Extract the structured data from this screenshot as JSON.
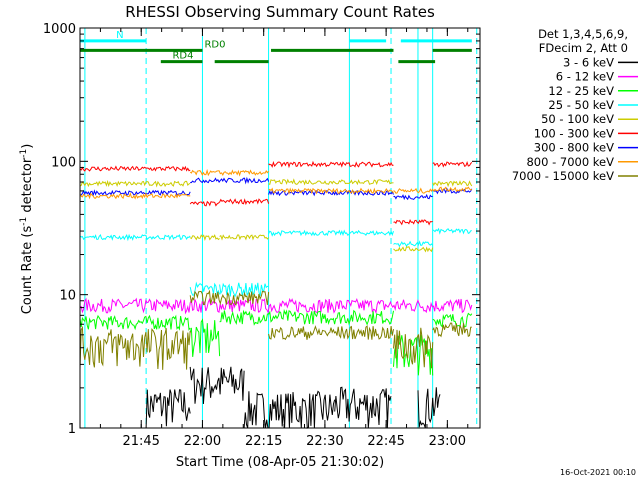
{
  "chart_data": {
    "type": "line",
    "title": "RHESSI Observing Summary Count Rates",
    "xlabel": "Start Time (08-Apr-05 21:30:02)",
    "ylabel_main": "Count Rate (s",
    "ylabel_sup1": "-1",
    "ylabel_mid": " detector",
    "ylabel_sup2": "-1",
    "ylabel_end": ")",
    "yscale": "log",
    "ylim": [
      1,
      1000
    ],
    "xlim_minutes": [
      21.5,
      23.1333
    ],
    "x_unit": "hours (UT)",
    "y_ticks": [
      {
        "value": 1,
        "label": "1"
      },
      {
        "value": 10,
        "label": "10"
      },
      {
        "value": 100,
        "label": "100"
      },
      {
        "value": 1000,
        "label": "1000"
      }
    ],
    "x_ticks": [
      {
        "value": 21.75,
        "label": "21:45"
      },
      {
        "value": 22.0,
        "label": "22:00"
      },
      {
        "value": 22.25,
        "label": "22:15"
      },
      {
        "value": 22.5,
        "label": "22:30"
      },
      {
        "value": 22.75,
        "label": "22:45"
      },
      {
        "value": 23.0,
        "label": "23:00"
      }
    ],
    "legend": {
      "header1": "Det 1,3,4,5,6,9,",
      "header2": "FDecim 2, Att 0",
      "placement": "right"
    },
    "series": [
      {
        "name": "3 - 6 keV",
        "color": "#000000",
        "segments": [
          [
            21.77,
            21.95,
            1.5
          ],
          [
            21.95,
            22.17,
            2.2
          ],
          [
            22.17,
            22.54,
            1.4
          ],
          [
            22.54,
            22.77,
            1.5
          ],
          [
            22.88,
            22.97,
            1.5
          ]
        ]
      },
      {
        "name": "6 - 12 keV",
        "color": "#ff00ff",
        "segments": [
          [
            21.5,
            23.1,
            8.3
          ]
        ]
      },
      {
        "name": "12 - 25 keV",
        "color": "#00ff00",
        "segments": [
          [
            21.5,
            21.95,
            6.2
          ],
          [
            21.95,
            22.07,
            4.8
          ],
          [
            22.07,
            22.27,
            6.8
          ],
          [
            22.27,
            22.78,
            6.8
          ],
          [
            22.78,
            22.94,
            3.8
          ],
          [
            22.94,
            23.1,
            6.5
          ]
        ]
      },
      {
        "name": "25 - 50 keV",
        "color": "#00ffff",
        "segments": [
          [
            21.5,
            21.95,
            27
          ],
          [
            21.95,
            22.07,
            11
          ],
          [
            22.07,
            22.27,
            11
          ],
          [
            22.27,
            22.78,
            29
          ],
          [
            22.78,
            22.94,
            24
          ],
          [
            22.94,
            23.1,
            30
          ]
        ]
      },
      {
        "name": "50 - 100 keV",
        "color": "#cccc00",
        "segments": [
          [
            21.5,
            21.95,
            68
          ],
          [
            21.95,
            22.07,
            27
          ],
          [
            22.07,
            22.27,
            27
          ],
          [
            22.27,
            22.78,
            70
          ],
          [
            22.78,
            22.94,
            22
          ],
          [
            22.94,
            23.1,
            68
          ]
        ]
      },
      {
        "name": "100 - 300 keV",
        "color": "#ff0000",
        "segments": [
          [
            21.5,
            21.95,
            88
          ],
          [
            21.95,
            22.07,
            48
          ],
          [
            22.07,
            22.27,
            50
          ],
          [
            22.27,
            22.78,
            95
          ],
          [
            22.78,
            22.94,
            35
          ],
          [
            22.94,
            23.1,
            95
          ]
        ]
      },
      {
        "name": "300 - 800 keV",
        "color": "#0000ff",
        "segments": [
          [
            21.5,
            21.95,
            58
          ],
          [
            21.95,
            22.27,
            72
          ],
          [
            22.27,
            22.78,
            58
          ],
          [
            22.78,
            22.94,
            54
          ],
          [
            22.94,
            23.1,
            60
          ]
        ]
      },
      {
        "name": "800 - 7000 keV",
        "color": "#ff9900",
        "segments": [
          [
            21.5,
            21.95,
            55
          ],
          [
            21.95,
            22.27,
            82
          ],
          [
            22.27,
            22.78,
            60
          ],
          [
            22.78,
            22.94,
            60
          ],
          [
            22.94,
            23.1,
            62
          ]
        ]
      },
      {
        "name": "7000 - 15000 keV",
        "color": "#808000",
        "segments": [
          [
            21.5,
            21.95,
            4.2
          ],
          [
            21.95,
            22.27,
            9.5
          ],
          [
            22.27,
            22.78,
            5.2
          ],
          [
            22.78,
            22.94,
            4.2
          ],
          [
            22.94,
            23.1,
            5.5
          ]
        ]
      }
    ],
    "flags": [
      {
        "name": "N",
        "color": "#00ffff",
        "value": 800,
        "segments": [
          [
            21.5,
            21.77
          ],
          [
            22.6,
            22.75
          ],
          [
            22.81,
            23.1
          ]
        ]
      },
      {
        "name": "RD0",
        "color": "#008000",
        "value": 680,
        "segments": [
          [
            21.5,
            22.0
          ],
          [
            22.28,
            22.78
          ],
          [
            22.94,
            23.1
          ]
        ]
      },
      {
        "name": "RD4",
        "color": "#008000",
        "value": 560,
        "segments": [
          [
            21.83,
            22.0
          ],
          [
            22.05,
            22.27
          ],
          [
            22.8,
            22.95
          ]
        ]
      }
    ],
    "vlines": [
      {
        "x": 21.52,
        "style": "solid"
      },
      {
        "x": 21.77,
        "style": "dashed"
      },
      {
        "x": 22.0,
        "style": "solid"
      },
      {
        "x": 22.27,
        "style": "solid"
      },
      {
        "x": 22.6,
        "style": "solid"
      },
      {
        "x": 22.77,
        "style": "dashed"
      },
      {
        "x": 22.88,
        "style": "solid"
      },
      {
        "x": 22.94,
        "style": "solid"
      },
      {
        "x": 23.12,
        "style": "dashed"
      }
    ],
    "footer": "16-Oct-2021 00:10"
  }
}
